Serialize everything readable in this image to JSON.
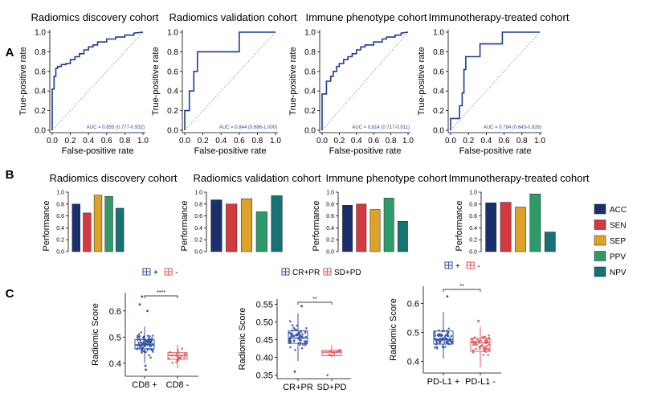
{
  "panel_letters": [
    "A",
    "B",
    "C"
  ],
  "colors": {
    "roc_line": "#1f3a93",
    "diagonal": "#aaaaaa",
    "ACC": "#1b2f6b",
    "SEN": "#d23a3f",
    "SEP": "#dca22a",
    "PPV": "#2e9a6a",
    "NPV": "#167273",
    "group_plus": "#3152a3",
    "group_minus": "#e0575a"
  },
  "legend_b": [
    "ACC",
    "SEN",
    "SEP",
    "PPV",
    "NPV"
  ],
  "chart_data": [
    {
      "type": "line",
      "panel": "A",
      "title": "Radiomics discovery cohort",
      "xlabel": "False-positive rate",
      "ylabel": "True-positive rate",
      "xlim": [
        0,
        1
      ],
      "ylim": [
        0,
        1
      ],
      "xticks": [
        "0.0",
        "0.2",
        "0.4",
        "0.6",
        "0.8",
        "1.0"
      ],
      "yticks": [
        "0.0",
        "0.2",
        "0.4",
        "0.6",
        "0.8",
        "1.0"
      ],
      "annotation": "AUC = 0.855 (0.777-0.932)",
      "x": [
        0,
        0,
        0.02,
        0.02,
        0.04,
        0.04,
        0.06,
        0.06,
        0.1,
        0.1,
        0.15,
        0.15,
        0.2,
        0.2,
        0.25,
        0.25,
        0.3,
        0.3,
        0.35,
        0.35,
        0.4,
        0.4,
        0.45,
        0.45,
        0.5,
        0.5,
        0.6,
        0.6,
        0.7,
        0.7,
        0.8,
        0.8,
        0.9,
        0.9,
        1.0
      ],
      "y": [
        0,
        0.42,
        0.42,
        0.55,
        0.55,
        0.63,
        0.63,
        0.65,
        0.65,
        0.67,
        0.67,
        0.68,
        0.68,
        0.72,
        0.72,
        0.75,
        0.75,
        0.78,
        0.78,
        0.82,
        0.82,
        0.85,
        0.85,
        0.87,
        0.87,
        0.9,
        0.9,
        0.93,
        0.93,
        0.95,
        0.95,
        0.97,
        0.97,
        0.99,
        1.0
      ]
    },
    {
      "type": "line",
      "panel": "A",
      "title": "Radiomics validation cohort",
      "xlabel": "False-positive rate",
      "ylabel": "True-positive rate",
      "xlim": [
        0,
        1
      ],
      "ylim": [
        0,
        1
      ],
      "xticks": [
        "0.0",
        "0.2",
        "0.4",
        "0.6",
        "0.8",
        "1.0"
      ],
      "yticks": [
        "0.0",
        "0.2",
        "0.4",
        "0.6",
        "0.8",
        "1.0"
      ],
      "annotation": "AUC = 0.844 (0.686-1.000)",
      "x": [
        0,
        0,
        0.05,
        0.05,
        0.1,
        0.1,
        0.14,
        0.14,
        0.6,
        0.6,
        1.0
      ],
      "y": [
        0,
        0.2,
        0.2,
        0.4,
        0.4,
        0.6,
        0.6,
        0.8,
        0.8,
        1.0,
        1.0
      ]
    },
    {
      "type": "line",
      "panel": "A",
      "title": "Immune phenotype cohort",
      "xlabel": "False-positive rate",
      "ylabel": "True-positive rate",
      "xlim": [
        0,
        1
      ],
      "ylim": [
        0,
        1
      ],
      "xticks": [
        "0.0",
        "0.2",
        "0.4",
        "0.6",
        "0.8",
        "1.0"
      ],
      "yticks": [
        "0.0",
        "0.2",
        "0.4",
        "0.6",
        "0.8",
        "1.0"
      ],
      "annotation": "AUC = 0.814 (0.717-0.911)",
      "x": [
        0,
        0,
        0.05,
        0.05,
        0.1,
        0.1,
        0.13,
        0.13,
        0.17,
        0.17,
        0.2,
        0.2,
        0.25,
        0.25,
        0.3,
        0.3,
        0.35,
        0.35,
        0.4,
        0.4,
        0.45,
        0.45,
        0.5,
        0.5,
        0.6,
        0.6,
        0.7,
        0.7,
        0.75,
        0.75,
        0.85,
        0.85,
        0.92,
        0.92,
        1.0
      ],
      "y": [
        0,
        0.37,
        0.37,
        0.5,
        0.5,
        0.55,
        0.55,
        0.6,
        0.6,
        0.65,
        0.65,
        0.68,
        0.68,
        0.72,
        0.72,
        0.75,
        0.75,
        0.78,
        0.78,
        0.82,
        0.82,
        0.85,
        0.85,
        0.87,
        0.87,
        0.9,
        0.9,
        0.93,
        0.93,
        0.95,
        0.95,
        0.97,
        0.97,
        0.99,
        1.0
      ]
    },
    {
      "type": "line",
      "panel": "A",
      "title": "Immunotherapy-treated cohort",
      "xlabel": "False-positive rate",
      "ylabel": "True-positive rate",
      "xlim": [
        0,
        1
      ],
      "ylim": [
        0,
        1
      ],
      "xticks": [
        "0.0",
        "0.2",
        "0.4",
        "0.6",
        "0.8",
        "1.0"
      ],
      "yticks": [
        "0.0",
        "0.2",
        "0.4",
        "0.6",
        "0.8",
        "1.0"
      ],
      "annotation": "AUC = 0.784 (0.643-0.926)",
      "x": [
        0,
        0,
        0.1,
        0.1,
        0.13,
        0.13,
        0.15,
        0.15,
        0.17,
        0.17,
        0.33,
        0.33,
        0.58,
        0.58,
        1.0
      ],
      "y": [
        0,
        0.12,
        0.12,
        0.25,
        0.25,
        0.38,
        0.38,
        0.62,
        0.62,
        0.75,
        0.75,
        0.88,
        0.88,
        1.0,
        1.0
      ]
    },
    {
      "type": "bar",
      "panel": "B",
      "title": "Radiomics discovery cohort",
      "ylabel": "Performance",
      "ylim": [
        0,
        1
      ],
      "yticks": [
        "0.0",
        "0.2",
        "0.4",
        "0.6",
        "0.8",
        "1.0"
      ],
      "categories": [
        "ACC",
        "SEN",
        "SEP",
        "PPV",
        "NPV"
      ],
      "values": [
        0.8,
        0.65,
        0.95,
        0.93,
        0.73
      ]
    },
    {
      "type": "bar",
      "panel": "B",
      "title": "Radiomics validation cohort",
      "ylabel": "Performance",
      "ylim": [
        0,
        1
      ],
      "yticks": [
        "0.0",
        "0.2",
        "0.4",
        "0.6",
        "0.8",
        "1.0"
      ],
      "categories": [
        "ACC",
        "SEN",
        "SEP",
        "PPV",
        "NPV"
      ],
      "values": [
        0.87,
        0.8,
        0.89,
        0.67,
        0.94
      ]
    },
    {
      "type": "bar",
      "panel": "B",
      "title": "Immune phenotype cohort",
      "ylabel": "Performance",
      "ylim": [
        0,
        1
      ],
      "yticks": [
        "0.0",
        "0.2",
        "0.4",
        "0.6",
        "0.8",
        "1.0"
      ],
      "categories": [
        "ACC",
        "SEN",
        "SEP",
        "PPV",
        "NPV"
      ],
      "values": [
        0.78,
        0.8,
        0.71,
        0.9,
        0.51
      ]
    },
    {
      "type": "bar",
      "panel": "B",
      "title": "Immunotherapy-treated cohort",
      "ylabel": "Performance",
      "ylim": [
        0,
        1
      ],
      "yticks": [
        "0.0",
        "0.2",
        "0.4",
        "0.6",
        "0.8",
        "1.0"
      ],
      "categories": [
        "ACC",
        "SEN",
        "SEP",
        "PPV",
        "NPV"
      ],
      "values": [
        0.82,
        0.83,
        0.75,
        0.97,
        0.33
      ]
    },
    {
      "type": "box",
      "panel": "C",
      "legend": [
        "+",
        "-"
      ],
      "categories": [
        "CD8 +",
        "CD8 -"
      ],
      "ylabel": "Radiomic Score",
      "ylim": [
        0.35,
        0.67
      ],
      "yticks": [
        "0.4",
        "0.5",
        "0.6"
      ],
      "ytick_values": [
        0.4,
        0.5,
        0.6
      ],
      "significance": "****",
      "boxes": [
        {
          "q1": 0.455,
          "median": 0.47,
          "q3": 0.49,
          "whisker_low": 0.4,
          "whisker_high": 0.54,
          "mean": 0.474,
          "spread": 0.035,
          "n": 90,
          "outliers": [
            0.6,
            0.625,
            0.655,
            0.39,
            0.375
          ]
        },
        {
          "q1": 0.415,
          "median": 0.43,
          "q3": 0.44,
          "whisker_low": 0.38,
          "whisker_high": 0.47,
          "mean": 0.43,
          "spread": 0.02,
          "n": 22,
          "outliers": []
        }
      ]
    },
    {
      "type": "box",
      "panel": "C",
      "legend": [
        "CR+PR",
        "SD+PD"
      ],
      "categories": [
        "CR+PR",
        "SD+PD"
      ],
      "ylabel": "Radiomic Score",
      "ylim": [
        0.34,
        0.565
      ],
      "yticks": [
        "0.35",
        "0.40",
        "0.45",
        "0.50",
        "0.55"
      ],
      "ytick_values": [
        0.35,
        0.4,
        0.45,
        0.5,
        0.55
      ],
      "significance": "**",
      "boxes": [
        {
          "q1": 0.44,
          "median": 0.455,
          "q3": 0.475,
          "whisker_low": 0.39,
          "whisker_high": 0.525,
          "mean": 0.458,
          "spread": 0.03,
          "n": 65,
          "outliers": [
            0.545,
            0.36
          ]
        },
        {
          "q1": 0.405,
          "median": 0.415,
          "q3": 0.42,
          "whisker_low": 0.4,
          "whisker_high": 0.435,
          "mean": 0.415,
          "spread": 0.01,
          "n": 10,
          "outliers": [
            0.35
          ]
        }
      ]
    },
    {
      "type": "box",
      "panel": "C",
      "legend": [
        "+",
        "-"
      ],
      "categories": [
        "PD-L1 +",
        "PD-L1 -"
      ],
      "ylabel": "Radiomic Score",
      "ylim": [
        0.36,
        0.66
      ],
      "yticks": [
        "0.4",
        "0.5",
        "0.6"
      ],
      "ytick_values": [
        0.4,
        0.5,
        0.6
      ],
      "significance": "**",
      "boxes": [
        {
          "q1": 0.46,
          "median": 0.475,
          "q3": 0.505,
          "whisker_low": 0.41,
          "whisker_high": 0.57,
          "mean": 0.48,
          "spread": 0.03,
          "n": 70,
          "outliers": [
            0.625
          ]
        },
        {
          "q1": 0.435,
          "median": 0.465,
          "q3": 0.48,
          "whisker_low": 0.38,
          "whisker_high": 0.52,
          "mean": 0.46,
          "spread": 0.03,
          "n": 55,
          "outliers": [
            0.54
          ]
        }
      ]
    }
  ]
}
